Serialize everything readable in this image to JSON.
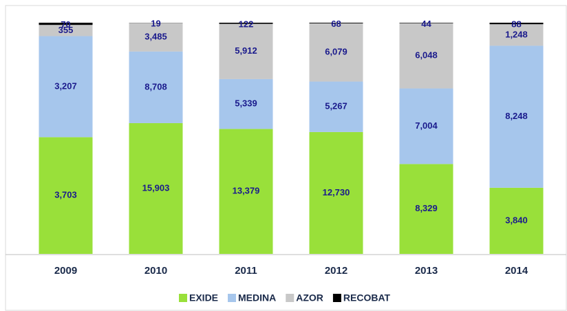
{
  "chart_data": {
    "type": "stacked_percent_bar",
    "categories": [
      "2009",
      "2010",
      "2011",
      "2012",
      "2013",
      "2014"
    ],
    "series": [
      {
        "name": "EXIDE",
        "color": "#99e03a",
        "values": [
          3703,
          15903,
          13379,
          12730,
          8329,
          3840
        ],
        "value_labels": [
          "3,703",
          "15,903",
          "13,379",
          "12,730",
          "8,329",
          "3,840"
        ]
      },
      {
        "name": "MEDINA",
        "color": "#a6c6ec",
        "values": [
          3207,
          8708,
          5339,
          5267,
          7004,
          8248
        ],
        "value_labels": [
          "3,207",
          "8,708",
          "5,339",
          "5,267",
          "7,004",
          "8,248"
        ]
      },
      {
        "name": "AZOR",
        "color": "#c8c8c8",
        "values": [
          355,
          3485,
          5912,
          6079,
          6048,
          1248
        ],
        "value_labels": [
          "355",
          "3,485",
          "5,912",
          "6,079",
          "6,048",
          "1,248"
        ]
      },
      {
        "name": "RECOBAT",
        "color": "#000000",
        "values": [
          70,
          19,
          122,
          68,
          44,
          88
        ]
      }
    ]
  }
}
